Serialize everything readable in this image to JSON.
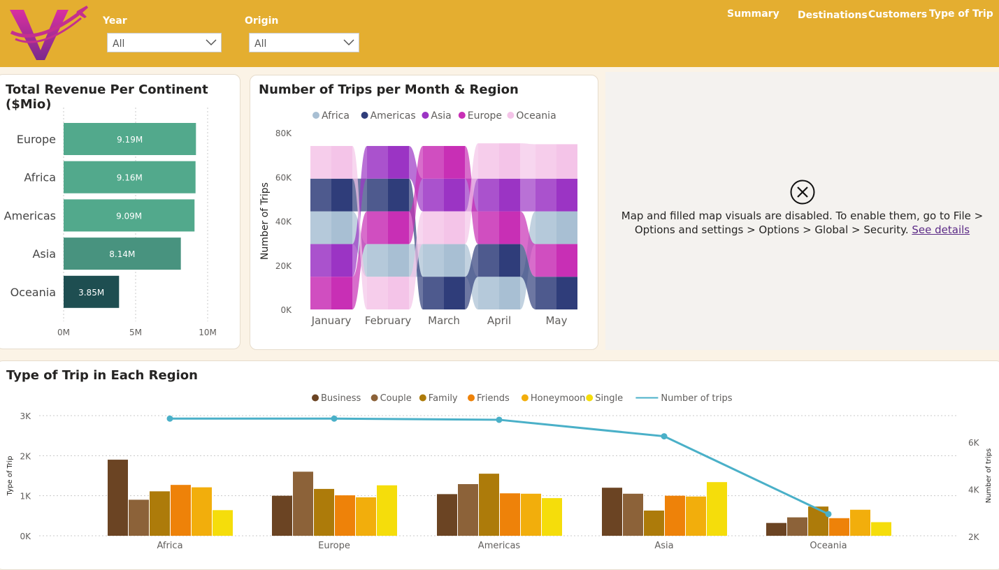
{
  "header": {
    "logo_icon": "airline-v-logo-icon",
    "filters": [
      {
        "label": "Year",
        "value": "All"
      },
      {
        "label": "Origin",
        "value": "All"
      }
    ],
    "nav": [
      "Summary",
      "Destinations",
      "Customers",
      "Type of Trip"
    ]
  },
  "revenue": {
    "title": "Total Revenue Per Continent ($Mio)"
  },
  "trips_month": {
    "title": "Number of Trips per Month & Region"
  },
  "map": {
    "icon": "close-circle-icon",
    "message_line1": "Map and filled map visuals are disabled. To enable them, go to File >",
    "message_line2": "Options and settings > Options > Global > Security.",
    "link": "See details"
  },
  "type_trip": {
    "title": "Type of Trip in Each Region"
  },
  "colors": {
    "header": "#e4ae30",
    "bar_teal": "#52a98c",
    "bar_teal_dark": "#1e4e51",
    "line": "#4ab0c8"
  },
  "chart_data": [
    {
      "type": "bar",
      "orientation": "horizontal",
      "title": "Total Revenue Per Continent ($Mio)",
      "categories": [
        "Europe",
        "Africa",
        "Americas",
        "Asia",
        "Oceania"
      ],
      "values": [
        9.19,
        9.16,
        9.09,
        8.14,
        3.85
      ],
      "data_labels": [
        "9.19M",
        "9.16M",
        "9.09M",
        "8.14M",
        "3.85M"
      ],
      "xlim": [
        0,
        10
      ],
      "xticks": [
        "0M",
        "5M",
        "10M"
      ],
      "colors": [
        "#52a98c",
        "#52a98c",
        "#52a98c",
        "#48937f",
        "#1e4e51"
      ]
    },
    {
      "type": "ribbon",
      "title": "Number of Trips per Month & Region",
      "ylabel": "Number of Trips",
      "categories": [
        "January",
        "February",
        "March",
        "April",
        "May"
      ],
      "yticks": [
        "0K",
        "20K",
        "40K",
        "60K",
        "80K"
      ],
      "ylim": [
        0,
        80000
      ],
      "series": [
        {
          "name": "Africa",
          "color": "#a8bfd3",
          "values": [
            14800,
            14800,
            14800,
            14800,
            14800
          ]
        },
        {
          "name": "Americas",
          "color": "#2f3d7a",
          "values": [
            14800,
            14800,
            14800,
            14800,
            14800
          ]
        },
        {
          "name": "Asia",
          "color": "#9b34c4",
          "values": [
            14800,
            14800,
            14800,
            14800,
            14800
          ]
        },
        {
          "name": "Europe",
          "color": "#c82fb5",
          "values": [
            14800,
            14800,
            14800,
            14800,
            14800
          ]
        },
        {
          "name": "Oceania",
          "color": "#f4c4e8",
          "values": [
            14800,
            14800,
            14800,
            16000,
            15600
          ]
        }
      ],
      "stack_order": [
        [
          "Europe",
          "Asia",
          "Africa",
          "Americas",
          "Oceania"
        ],
        [
          "Oceania",
          "Africa",
          "Europe",
          "Americas",
          "Asia"
        ],
        [
          "Americas",
          "Africa",
          "Oceania",
          "Asia",
          "Europe"
        ],
        [
          "Africa",
          "Americas",
          "Europe",
          "Asia",
          "Oceania"
        ],
        [
          "Americas",
          "Europe",
          "Africa",
          "Asia",
          "Oceania"
        ]
      ]
    },
    {
      "type": "bar",
      "title": "Type of Trip in Each Region",
      "categories": [
        "Africa",
        "Europe",
        "Americas",
        "Asia",
        "Oceania"
      ],
      "ylabel": "Type of Trip",
      "y2label": "Number of trips",
      "ylim": [
        0,
        3200
      ],
      "yticks": [
        "0K",
        "1K",
        "2K",
        "3K"
      ],
      "y2lim": [
        2000,
        7000
      ],
      "y2ticks": [
        "2K",
        "4K",
        "6K"
      ],
      "series": [
        {
          "name": "Business",
          "color": "#6b4423",
          "values": [
            1900,
            1000,
            1040,
            1200,
            320
          ]
        },
        {
          "name": "Couple",
          "color": "#8c6239",
          "values": [
            900,
            1600,
            1290,
            1050,
            460
          ]
        },
        {
          "name": "Family",
          "color": "#ad7b0a",
          "values": [
            1110,
            1170,
            1550,
            630,
            730
          ]
        },
        {
          "name": "Friends",
          "color": "#ee8209",
          "values": [
            1270,
            1010,
            1060,
            1000,
            440
          ]
        },
        {
          "name": "Honeymoon",
          "color": "#f2ae0c",
          "values": [
            1210,
            960,
            1050,
            980,
            650
          ]
        },
        {
          "name": "Single",
          "color": "#f5dd0b",
          "values": [
            640,
            1260,
            940,
            1340,
            340
          ]
        }
      ],
      "line": {
        "name": "Number of trips",
        "color": "#4ab0c8",
        "values": [
          7000,
          7000,
          6950,
          6250,
          2950
        ]
      }
    }
  ]
}
